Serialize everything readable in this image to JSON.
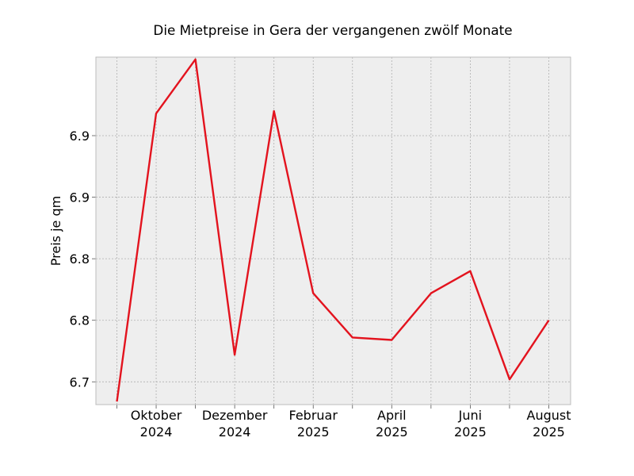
{
  "chart_data": {
    "type": "line",
    "title": "Die Mietpreise in Gera der vergangenen zwölf Monate",
    "xlabel": "",
    "ylabel": "Preis je qm",
    "x": [
      "2024-09",
      "2024-10",
      "2024-11",
      "2024-12",
      "2025-01",
      "2025-02",
      "2025-03",
      "2025-04",
      "2025-05",
      "2025-06",
      "2025-07",
      "2025-08"
    ],
    "x_tick_labels": [
      {
        "x": "2024-10",
        "line1": "Oktober",
        "line2": "2024"
      },
      {
        "x": "2024-12",
        "line1": "Dezember",
        "line2": "2024"
      },
      {
        "x": "2025-02",
        "line1": "Februar",
        "line2": "2025"
      },
      {
        "x": "2025-04",
        "line1": "April",
        "line2": "2025"
      },
      {
        "x": "2025-06",
        "line1": "Juni",
        "line2": "2025"
      },
      {
        "x": "2025-08",
        "line1": "August",
        "line2": "2025"
      }
    ],
    "series": [
      {
        "values": [
          6.684,
          6.918,
          6.962,
          6.722,
          6.92,
          6.772,
          6.736,
          6.734,
          6.772,
          6.79,
          6.702,
          6.75
        ]
      }
    ],
    "yticks": [
      6.7,
      6.75,
      6.8,
      6.85,
      6.9
    ],
    "ytick_labels": [
      "6.7",
      "6.8",
      "6.8",
      "6.9",
      "6.9"
    ],
    "ylim": [
      6.6815,
      6.9638
    ],
    "grid": true,
    "colors": {
      "line": "#e3131e",
      "plot_background": "#eeeeee",
      "grid": "#b0b0b0",
      "frame": "#bcbcbc"
    }
  }
}
